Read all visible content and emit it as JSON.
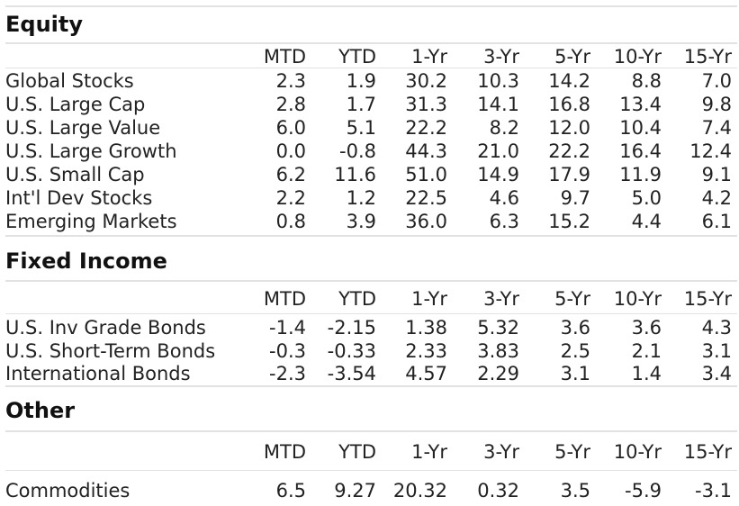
{
  "columns": [
    "MTD",
    "YTD",
    "1-Yr",
    "3-Yr",
    "5-Yr",
    "10-Yr",
    "15-Yr"
  ],
  "sections": [
    {
      "title": "Equity",
      "rows": [
        {
          "label": "Global Stocks",
          "values": [
            "2.3",
            "1.9",
            "30.2",
            "10.3",
            "14.2",
            "8.8",
            "7.0"
          ]
        },
        {
          "label": "U.S. Large Cap",
          "values": [
            "2.8",
            "1.7",
            "31.3",
            "14.1",
            "16.8",
            "13.4",
            "9.8"
          ]
        },
        {
          "label": "U.S. Large Value",
          "values": [
            "6.0",
            "5.1",
            "22.2",
            "8.2",
            "12.0",
            "10.4",
            "7.4"
          ]
        },
        {
          "label": "U.S. Large Growth",
          "values": [
            "0.0",
            "-0.8",
            "44.3",
            "21.0",
            "22.2",
            "16.4",
            "12.4"
          ]
        },
        {
          "label": "U.S. Small Cap",
          "values": [
            "6.2",
            "11.6",
            "51.0",
            "14.9",
            "17.9",
            "11.9",
            "9.1"
          ]
        },
        {
          "label": "Int'l Dev Stocks",
          "values": [
            "2.2",
            "1.2",
            "22.5",
            "4.6",
            "9.7",
            "5.0",
            "4.2"
          ]
        },
        {
          "label": "Emerging Markets",
          "values": [
            "0.8",
            "3.9",
            "36.0",
            "6.3",
            "15.2",
            "4.4",
            "6.1"
          ]
        }
      ]
    },
    {
      "title": "Fixed Income",
      "rows": [
        {
          "label": "U.S. Inv Grade Bonds",
          "values": [
            "-1.4",
            "-2.15",
            "1.38",
            "5.32",
            "3.6",
            "3.6",
            "4.3"
          ]
        },
        {
          "label": "U.S. Short-Term Bonds",
          "values": [
            "-0.3",
            "-0.33",
            "2.33",
            "3.83",
            "2.5",
            "2.1",
            "3.1"
          ]
        },
        {
          "label": "International Bonds",
          "values": [
            "-2.3",
            "-3.54",
            "4.57",
            "2.29",
            "3.1",
            "1.4",
            "3.4"
          ]
        }
      ]
    },
    {
      "title": "Other",
      "rows": [
        {
          "label": "Commodities",
          "values": [
            "6.5",
            "9.27",
            "20.32",
            "0.32",
            "3.5",
            "-5.9",
            "-3.1"
          ]
        }
      ]
    }
  ]
}
